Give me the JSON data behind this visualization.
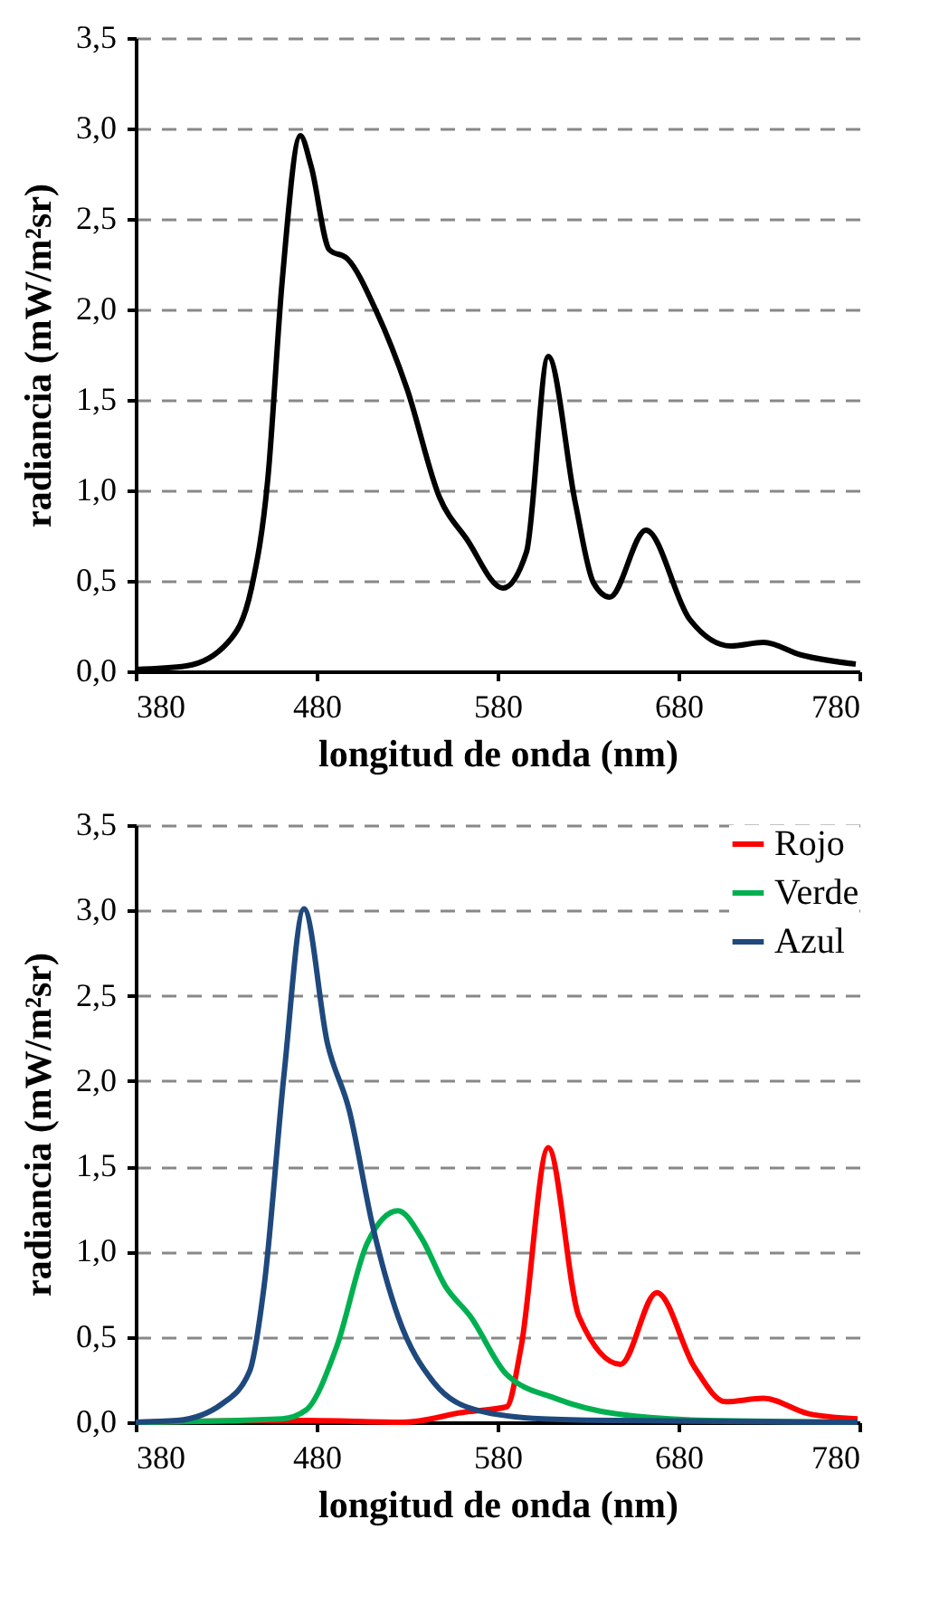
{
  "chart_data": [
    {
      "type": "line",
      "xlabel": "longitud de onda (nm)",
      "ylabel": "radiancia (mW/m²sr)",
      "xlim": [
        380,
        780
      ],
      "xticks": [
        380,
        480,
        580,
        680,
        780
      ],
      "ylim": [
        0,
        3.5
      ],
      "yticks": [
        {
          "value": 0,
          "label": "0,0"
        },
        {
          "value": 0.5,
          "label": "0,5"
        },
        {
          "value": 1,
          "label": "1,0"
        },
        {
          "value": 1.5,
          "label": "1,5"
        },
        {
          "value": 2,
          "label": "2,0"
        },
        {
          "value": 2.5,
          "label": "2,5"
        },
        {
          "value": 3,
          "label": "3,0"
        },
        {
          "value": 3.5,
          "label": "3,5"
        }
      ],
      "grid": "y",
      "legend": false,
      "series": [
        {
          "color": "#000000",
          "x": [
            380,
            408,
            431,
            444,
            453,
            461,
            471,
            477,
            487,
            497,
            513,
            530,
            548,
            563,
            583,
            596,
            608,
            623,
            633,
            642,
            662,
            686,
            709,
            727,
            748,
            778
          ],
          "values": [
            0.01,
            0.03,
            0.16,
            0.46,
            1.06,
            2.16,
            2.96,
            2.79,
            2.33,
            2.28,
            1.99,
            1.56,
            0.96,
            0.73,
            0.46,
            0.66,
            1.74,
            0.93,
            0.49,
            0.41,
            0.78,
            0.29,
            0.14,
            0.16,
            0.09,
            0.04
          ]
        }
      ]
    },
    {
      "type": "line",
      "xlabel": "longitud de onda (nm)",
      "ylabel": "radiancia (mW/m²sr)",
      "xlim": [
        380,
        780
      ],
      "xticks": [
        380,
        480,
        580,
        680,
        780
      ],
      "ylim": [
        0,
        3.5
      ],
      "yticks": [
        {
          "value": 0,
          "label": "0,0"
        },
        {
          "value": 0.5,
          "label": "0,5"
        },
        {
          "value": 1,
          "label": "1,0"
        },
        {
          "value": 1.5,
          "label": "1,5"
        },
        {
          "value": 2,
          "label": "2,0"
        },
        {
          "value": 2.5,
          "label": "2,5"
        },
        {
          "value": 3,
          "label": "3,0"
        },
        {
          "value": 3.5,
          "label": "3,5"
        }
      ],
      "grid": "y",
      "legend": "top right",
      "series": [
        {
          "name": "Rojo",
          "color": "#ff0000",
          "x": [
            380,
            474,
            528,
            562,
            585,
            593,
            608,
            625,
            648,
            668,
            689,
            706,
            727,
            752,
            779
          ],
          "values": [
            0,
            0.01,
            0,
            0.06,
            0.09,
            0.44,
            1.61,
            0.62,
            0.34,
            0.76,
            0.32,
            0.12,
            0.14,
            0.05,
            0.02
          ]
        },
        {
          "name": "Verde",
          "color": "#00b050",
          "x": [
            380,
            461,
            474,
            491,
            508,
            525,
            538,
            551,
            565,
            585,
            612,
            645,
            696,
            779
          ],
          "values": [
            0,
            0.02,
            0.07,
            0.44,
            1.05,
            1.24,
            1.08,
            0.8,
            0.62,
            0.28,
            0.14,
            0.05,
            0.01,
            0
          ]
        },
        {
          "name": "Azul",
          "color": "#1f497d",
          "x": [
            380,
            403,
            428,
            443,
            451,
            462,
            473,
            486,
            498,
            511,
            525,
            545,
            569,
            605,
            645,
            779
          ],
          "values": [
            0,
            0.01,
            0.11,
            0.3,
            0.8,
            2.04,
            3.01,
            2.22,
            1.83,
            1.15,
            0.62,
            0.23,
            0.07,
            0.02,
            0.01,
            0
          ]
        }
      ]
    }
  ]
}
